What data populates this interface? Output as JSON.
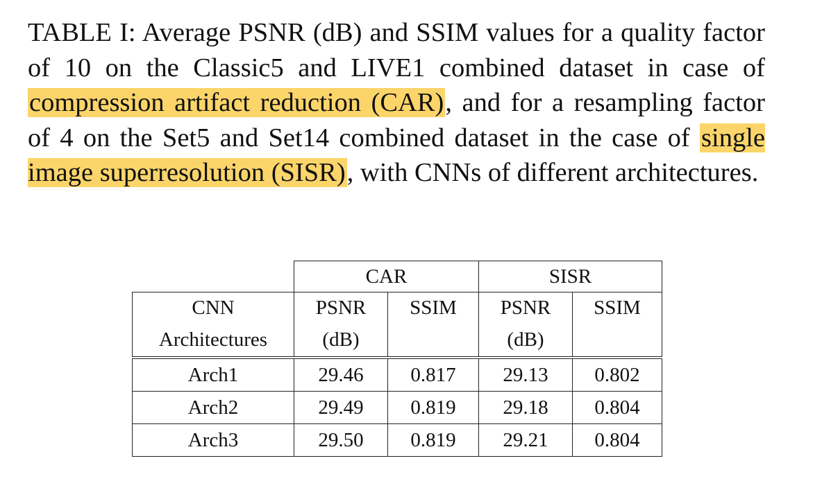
{
  "caption": {
    "part1": "TABLE I: Average PSNR (dB) and SSIM values for a quality factor of 10 on the Classic5 and LIVE1 combined dataset in case of ",
    "highlight1": "compression artifact reduction (CAR)",
    "part2": ", and for a resampling factor of 4 on the Set5 and Set14 combined dataset in the case of ",
    "highlight2": "single image superresolution (SISR)",
    "part3": ", with CNNs of different architectures."
  },
  "colors": {
    "highlight": "#fbd56a"
  },
  "table": {
    "groups": [
      "CAR",
      "SISR"
    ],
    "row_header": [
      "CNN",
      "Architectures"
    ],
    "sub_headers": [
      [
        "PSNR",
        "(dB)"
      ],
      [
        "SSIM",
        ""
      ],
      [
        "PSNR",
        "(dB)"
      ],
      [
        "SSIM",
        ""
      ]
    ],
    "rows": [
      [
        "Arch1",
        "29.46",
        "0.817",
        "29.13",
        "0.802"
      ],
      [
        "Arch2",
        "29.49",
        "0.819",
        "29.18",
        "0.804"
      ],
      [
        "Arch3",
        "29.50",
        "0.819",
        "29.21",
        "0.804"
      ]
    ]
  }
}
